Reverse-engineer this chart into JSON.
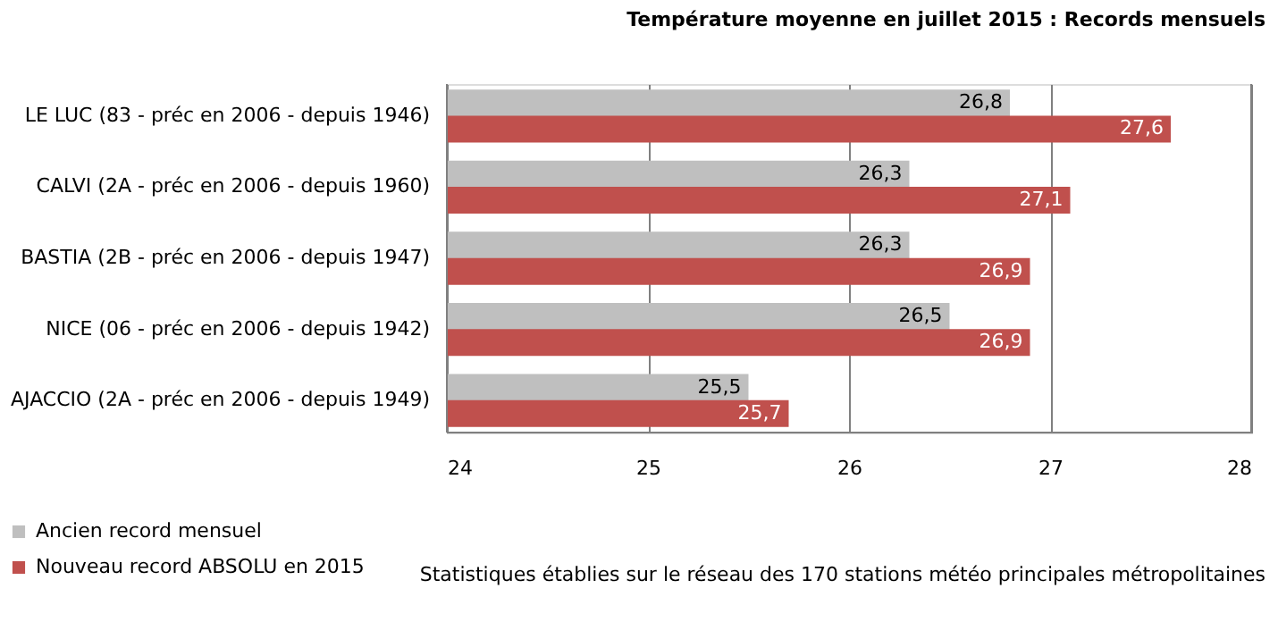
{
  "chart_data": {
    "type": "bar",
    "orientation": "horizontal",
    "title": "Température moyenne en juillet 2015 : Records  mensuels",
    "categories": [
      "LE LUC (83 - préc en 2006 - depuis 1946)",
      "CALVI (2A - préc en 2006 - depuis 1960)",
      "BASTIA (2B - préc en 2006 - depuis 1947)",
      "NICE (06 - préc en 2006 - depuis 1942)",
      "AJACCIO (2A - préc en 2006 - depuis 1949)"
    ],
    "series": [
      {
        "name": "Ancien record mensuel",
        "color": "#bfbfbf",
        "values": [
          26.8,
          26.3,
          26.3,
          26.5,
          25.5
        ],
        "value_labels": [
          "26,8",
          "26,3",
          "26,3",
          "26,5",
          "25,5"
        ]
      },
      {
        "name": "Nouveau record ABSOLU en 2015",
        "color": "#c0504d",
        "values": [
          27.6,
          27.1,
          26.9,
          26.9,
          25.7
        ],
        "value_labels": [
          "27,6",
          "27,1",
          "26,9",
          "26,9",
          "25,7"
        ]
      }
    ],
    "xlim": [
      24,
      28
    ],
    "xticks": [
      24,
      25,
      26,
      27,
      28
    ],
    "grid": "x",
    "legend": "bottom left",
    "annotations": [
      "Statistiques établies sur le réseau des 170 stations météo principales métropolitaines"
    ]
  }
}
